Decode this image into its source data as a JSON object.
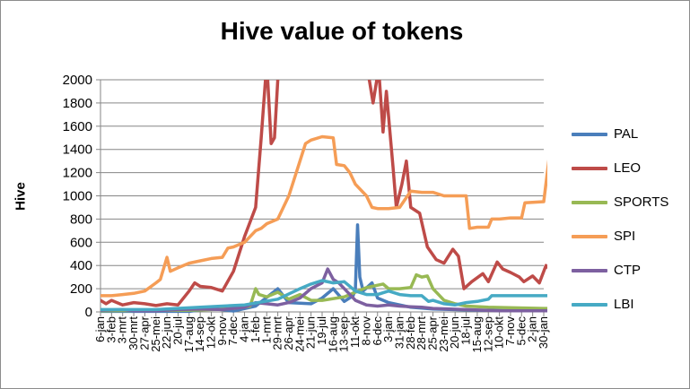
{
  "chart_data": {
    "type": "line",
    "title": "Hive value of tokens",
    "xlabel": "",
    "ylabel": "Hive",
    "ylim": [
      0,
      2000
    ],
    "y_ticks": [
      "0",
      "200",
      "400",
      "600",
      "800",
      "1000",
      "1200",
      "1400",
      "1600",
      "1800",
      "2000"
    ],
    "x_tick_labels": [
      "6-jan",
      "3-feb",
      "3-mrt",
      "30-mrt",
      "27-apr",
      "25-mei",
      "22-jun",
      "20-jul",
      "17-aug",
      "14-sep",
      "12-okt",
      "9-nov",
      "7-dec",
      "4-jan",
      "1-feb",
      "1-mrt",
      "29-mrt",
      "26-apr",
      "24-mei",
      "21-jun",
      "19-jul",
      "16-aug",
      "13-sep",
      "11-okt",
      "8-nov",
      "6-dec",
      "3-jan",
      "31-jan",
      "28-feb",
      "28-mrt",
      "25-apr",
      "23-mei",
      "20-jun",
      "18-jul",
      "15-aug",
      "12-sep",
      "10-okt",
      "7-nov",
      "5-dec",
      "2-jan",
      "30-jan"
    ],
    "grid": true,
    "legend_position": "right",
    "series": [
      {
        "name": "PAL",
        "color": "#4a7ebb",
        "points": [
          [
            0,
            5
          ],
          [
            8,
            5
          ],
          [
            10,
            30
          ],
          [
            12,
            8
          ],
          [
            14,
            50
          ],
          [
            16,
            200
          ],
          [
            17,
            80
          ],
          [
            19,
            70
          ],
          [
            20,
            120
          ],
          [
            21,
            200
          ],
          [
            22,
            90
          ],
          [
            22.8,
            140
          ],
          [
            23,
            200
          ],
          [
            23.2,
            750
          ],
          [
            23.4,
            300
          ],
          [
            23.7,
            180
          ],
          [
            24.5,
            250
          ],
          [
            25,
            120
          ],
          [
            26,
            80
          ],
          [
            28,
            40
          ],
          [
            30,
            25
          ],
          [
            34,
            15
          ],
          [
            40,
            10
          ],
          [
            41,
            10
          ]
        ]
      },
      {
        "name": "LEO",
        "color": "#be4b48",
        "points": [
          [
            0,
            100
          ],
          [
            0.5,
            70
          ],
          [
            1,
            100
          ],
          [
            2,
            60
          ],
          [
            3,
            80
          ],
          [
            4,
            70
          ],
          [
            5,
            55
          ],
          [
            6,
            70
          ],
          [
            7,
            60
          ],
          [
            8,
            180
          ],
          [
            8.5,
            250
          ],
          [
            9,
            220
          ],
          [
            10,
            210
          ],
          [
            11,
            180
          ],
          [
            12,
            350
          ],
          [
            13,
            650
          ],
          [
            14,
            900
          ],
          [
            14.5,
            1500
          ],
          [
            15,
            2150
          ],
          [
            15.4,
            1450
          ],
          [
            15.7,
            1500
          ],
          [
            16,
            2000
          ],
          [
            16.3,
            2150
          ],
          [
            24,
            2150
          ],
          [
            24.6,
            1800
          ],
          [
            25.1,
            2100
          ],
          [
            25.5,
            1550
          ],
          [
            25.8,
            1900
          ],
          [
            26.4,
            1250
          ],
          [
            26.7,
            900
          ],
          [
            27.2,
            1100
          ],
          [
            27.6,
            1300
          ],
          [
            28,
            900
          ],
          [
            28.8,
            850
          ],
          [
            29.5,
            560
          ],
          [
            30.3,
            450
          ],
          [
            31,
            420
          ],
          [
            31.8,
            540
          ],
          [
            32.3,
            480
          ],
          [
            32.8,
            200
          ],
          [
            33.5,
            260
          ],
          [
            34.5,
            330
          ],
          [
            35,
            260
          ],
          [
            35.8,
            430
          ],
          [
            36.3,
            370
          ],
          [
            37,
            340
          ],
          [
            37.8,
            300
          ],
          [
            38.2,
            260
          ],
          [
            39,
            310
          ],
          [
            39.6,
            250
          ],
          [
            40.2,
            400
          ],
          [
            40.7,
            350
          ],
          [
            41,
            270
          ]
        ]
      },
      {
        "name": "SPORTS",
        "color": "#98b954",
        "points": [
          [
            0,
            10
          ],
          [
            8,
            15
          ],
          [
            10,
            20
          ],
          [
            12,
            30
          ],
          [
            13.5,
            50
          ],
          [
            14,
            200
          ],
          [
            14.3,
            150
          ],
          [
            15,
            130
          ],
          [
            16,
            170
          ],
          [
            17,
            110
          ],
          [
            18,
            150
          ],
          [
            19,
            100
          ],
          [
            20,
            100
          ],
          [
            22,
            130
          ],
          [
            23,
            170
          ],
          [
            24,
            210
          ],
          [
            25.5,
            240
          ],
          [
            26,
            200
          ],
          [
            27,
            200
          ],
          [
            28,
            210
          ],
          [
            28.5,
            320
          ],
          [
            29,
            300
          ],
          [
            29.5,
            310
          ],
          [
            30,
            200
          ],
          [
            31,
            100
          ],
          [
            32,
            70
          ],
          [
            33,
            50
          ],
          [
            35,
            40
          ],
          [
            40,
            30
          ],
          [
            41,
            30
          ]
        ]
      },
      {
        "name": "SPI",
        "color": "#f59d56",
        "points": [
          [
            0,
            140
          ],
          [
            1,
            140
          ],
          [
            2,
            150
          ],
          [
            3,
            160
          ],
          [
            4,
            180
          ],
          [
            5,
            250
          ],
          [
            5.4,
            280
          ],
          [
            6,
            470
          ],
          [
            6.3,
            350
          ],
          [
            7,
            380
          ],
          [
            8,
            420
          ],
          [
            9,
            440
          ],
          [
            10,
            460
          ],
          [
            11,
            470
          ],
          [
            11.5,
            550
          ],
          [
            12,
            560
          ],
          [
            13,
            600
          ],
          [
            14,
            700
          ],
          [
            14.5,
            720
          ],
          [
            15,
            760
          ],
          [
            16,
            800
          ],
          [
            17,
            1000
          ],
          [
            17.5,
            1150
          ],
          [
            18,
            1300
          ],
          [
            18.5,
            1450
          ],
          [
            19,
            1480
          ],
          [
            20,
            1510
          ],
          [
            21,
            1500
          ],
          [
            21.3,
            1270
          ],
          [
            22,
            1260
          ],
          [
            22.5,
            1200
          ],
          [
            23,
            1100
          ],
          [
            24,
            1000
          ],
          [
            24.5,
            900
          ],
          [
            25,
            890
          ],
          [
            26,
            890
          ],
          [
            27,
            900
          ],
          [
            28,
            1040
          ],
          [
            29,
            1030
          ],
          [
            30,
            1030
          ],
          [
            31,
            1000
          ],
          [
            32,
            1000
          ],
          [
            33,
            1000
          ],
          [
            33.3,
            720
          ],
          [
            34,
            730
          ],
          [
            35,
            730
          ],
          [
            35.3,
            800
          ],
          [
            36,
            800
          ],
          [
            37,
            810
          ],
          [
            38,
            810
          ],
          [
            38.3,
            940
          ],
          [
            40,
            950
          ],
          [
            40.5,
            1340
          ],
          [
            40.8,
            1200
          ],
          [
            41,
            1050
          ]
        ]
      },
      {
        "name": "CTP",
        "color": "#7d60a0",
        "points": [
          [
            0,
            15
          ],
          [
            2,
            20
          ],
          [
            3,
            10
          ],
          [
            5,
            10
          ],
          [
            7,
            20
          ],
          [
            9,
            25
          ],
          [
            11,
            20
          ],
          [
            12,
            30
          ],
          [
            13,
            40
          ],
          [
            14,
            80
          ],
          [
            15,
            70
          ],
          [
            16,
            60
          ],
          [
            17,
            80
          ],
          [
            18,
            120
          ],
          [
            19,
            200
          ],
          [
            20,
            250
          ],
          [
            20.5,
            370
          ],
          [
            21,
            280
          ],
          [
            21.5,
            250
          ],
          [
            22,
            200
          ],
          [
            23,
            100
          ],
          [
            24,
            60
          ],
          [
            25,
            50
          ],
          [
            26,
            60
          ],
          [
            27,
            50
          ],
          [
            28,
            45
          ],
          [
            29,
            40
          ],
          [
            30,
            30
          ],
          [
            33,
            20
          ],
          [
            36,
            10
          ],
          [
            41,
            10
          ]
        ]
      },
      {
        "name": "LBI",
        "color": "#46aac4",
        "points": [
          [
            0,
            20
          ],
          [
            5,
            20
          ],
          [
            9,
            40
          ],
          [
            13,
            60
          ],
          [
            16,
            110
          ],
          [
            18,
            200
          ],
          [
            19,
            240
          ],
          [
            20,
            270
          ],
          [
            21,
            250
          ],
          [
            22,
            260
          ],
          [
            23,
            180
          ],
          [
            24,
            150
          ],
          [
            25,
            150
          ],
          [
            26,
            180
          ],
          [
            27,
            150
          ],
          [
            28,
            140
          ],
          [
            29,
            140
          ],
          [
            29.6,
            90
          ],
          [
            30,
            100
          ],
          [
            31,
            70
          ],
          [
            32,
            60
          ],
          [
            33,
            80
          ],
          [
            34,
            90
          ],
          [
            35,
            110
          ],
          [
            35.3,
            140
          ],
          [
            38,
            140
          ],
          [
            40,
            140
          ],
          [
            40.5,
            140
          ],
          [
            41,
            120
          ]
        ]
      }
    ]
  }
}
